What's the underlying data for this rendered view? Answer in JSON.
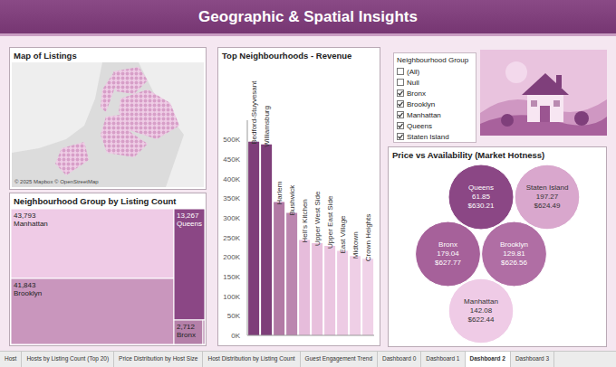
{
  "title": "Geographic & Spatial Insights",
  "chart_data": [
    {
      "type": "map",
      "title": "Map of Listings",
      "attribution": "© 2025 Mapbox © OpenStreetMap"
    },
    {
      "type": "treemap",
      "title": "Neighbourhood Group by Listing Count",
      "categories": [
        "Manhattan",
        "Brooklyn",
        "Queens",
        "Bronx",
        null
      ],
      "values": [
        43793,
        41843,
        13267,
        2712,
        373
      ],
      "value_labels": [
        "43,793",
        "41,843",
        "13,267",
        "2,712",
        null
      ],
      "colors": [
        "#efcbe6",
        "#c996bd",
        "#8b4785",
        "#b580a9",
        "#a26596"
      ],
      "data_labels": true
    },
    {
      "type": "bar",
      "title": "Top Neighbourhoods - Revenue",
      "categories": [
        "Bedford-Stuyvesant",
        "Williamsburg",
        "Harlem",
        "Bushwick",
        "Hell's Kitchen",
        "Upper West Side",
        "Upper East Side",
        "East Village",
        "Midtown",
        "Crown Heights"
      ],
      "values": [
        495000,
        488000,
        341000,
        313000,
        244000,
        236000,
        229000,
        216000,
        203000,
        196000
      ],
      "colors": [
        "#7e3e79",
        "#7e3e79",
        "#b27aa5",
        "#bb86af",
        "#e6bcdb",
        "#e8c0dd",
        "#ebc6e1",
        "#edcbe4",
        "#efcfe6",
        "#f0d2e8"
      ],
      "ylim": [
        0,
        550000
      ],
      "yticks": [
        {
          "value": 0,
          "label": "0K"
        },
        {
          "value": 50000,
          "label": "50K"
        },
        {
          "value": 100000,
          "label": "100K"
        },
        {
          "value": 150000,
          "label": "150K"
        },
        {
          "value": 200000,
          "label": "200K"
        },
        {
          "value": 250000,
          "label": "250K"
        },
        {
          "value": 300000,
          "label": "300K"
        },
        {
          "value": 350000,
          "label": "350K"
        },
        {
          "value": 400000,
          "label": "400K"
        },
        {
          "value": 450000,
          "label": "450K"
        },
        {
          "value": 500000,
          "label": "500K"
        }
      ],
      "grid": false,
      "tick_labels": "y"
    },
    {
      "type": "bubble",
      "title": "Price vs Availability (Market Hotness)",
      "categories": [
        "Queens",
        "Staten Island",
        "Bronx",
        "Brooklyn",
        "Manhattan"
      ],
      "availability": [
        61.85,
        197.27,
        179.04,
        129.81,
        142.08
      ],
      "values": [
        630.21,
        624.49,
        627.77,
        626.56,
        622.44
      ],
      "value_labels": [
        "$630.21",
        "$624.49",
        "$627.77",
        "$626.56",
        "$622.44"
      ],
      "colors": [
        "#8b4785",
        "#d9a7cd",
        "#a6619a",
        "#b06ea4",
        "#efcbe6"
      ],
      "data_labels": true
    }
  ],
  "filter": {
    "title": "Neighbourhood Group",
    "items": [
      {
        "label": "(All)",
        "checked": false
      },
      {
        "label": "Null",
        "checked": false
      },
      {
        "label": "Bronx",
        "checked": true
      },
      {
        "label": "Brooklyn",
        "checked": true
      },
      {
        "label": "Manhattan",
        "checked": true
      },
      {
        "label": "Queens",
        "checked": true
      },
      {
        "label": "Staten Island",
        "checked": true
      }
    ]
  },
  "tabs": [
    "Host",
    "Hosts by Listing Count (Top 20)",
    "Price Distribution by Host Size",
    "Host Distribution by Listing Count",
    "Guest Engagement Trend",
    "Dashboard 0",
    "Dashboard 1",
    "Dashboard 2",
    "Dashboard 3"
  ],
  "active_tab": "Dashboard 2"
}
